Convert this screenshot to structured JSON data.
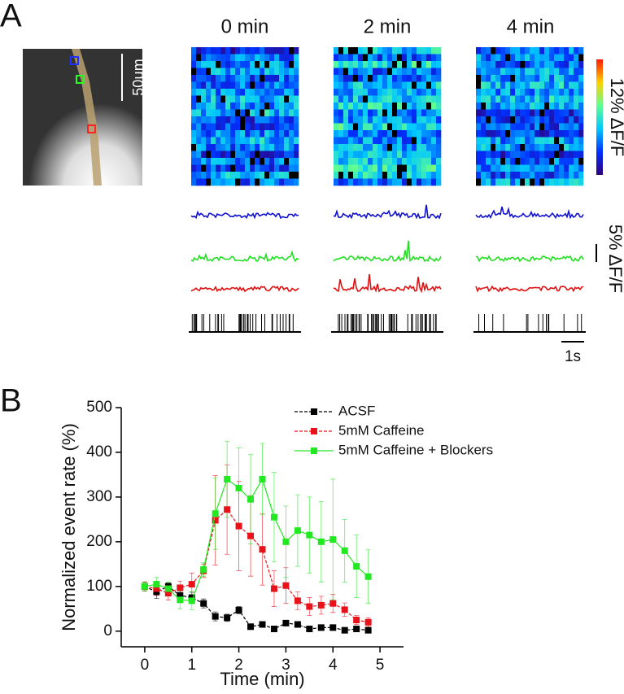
{
  "panel_a": {
    "label": "A",
    "time_labels": [
      "0 min",
      "2 min",
      "4 min"
    ],
    "scale_bar": "50μm",
    "colorbar_label": "12% ΔF/F",
    "trace_scale": "5% ΔF/F",
    "time_scale": "1s"
  },
  "panel_b": {
    "label": "B"
  },
  "chart_data": {
    "type": "line",
    "xlabel": "Time (min)",
    "ylabel": "Normalized event rate (%)",
    "x": [
      0,
      0.25,
      0.5,
      0.75,
      1,
      1.25,
      1.5,
      1.75,
      2,
      2.25,
      2.5,
      2.75,
      3,
      3.25,
      3.5,
      3.75,
      4,
      4.25,
      4.5,
      4.75
    ],
    "series": [
      {
        "name": "ACSF",
        "color": "#000000",
        "values": [
          100,
          88,
          100,
          80,
          75,
          62,
          33,
          30,
          47,
          10,
          15,
          5,
          18,
          15,
          5,
          8,
          8,
          2,
          5,
          2
        ],
        "errors": [
          10,
          15,
          8,
          15,
          12,
          10,
          10,
          8,
          8,
          5,
          5,
          5,
          5,
          5,
          5,
          5,
          5,
          5,
          5,
          5
        ]
      },
      {
        "name": "5mM Caffeine",
        "color": "#e8131a",
        "values": [
          100,
          95,
          85,
          97,
          105,
          135,
          248,
          272,
          235,
          213,
          183,
          95,
          102,
          68,
          55,
          58,
          62,
          48,
          25,
          20
        ],
        "errors": [
          10,
          15,
          15,
          15,
          25,
          15,
          100,
          100,
          100,
          90,
          80,
          40,
          40,
          20,
          20,
          20,
          20,
          15,
          10,
          10
        ]
      },
      {
        "name": "5mM Caffeine + Blockers",
        "color": "#22e822",
        "values": [
          100,
          105,
          95,
          70,
          68,
          138,
          263,
          340,
          320,
          295,
          340,
          255,
          200,
          225,
          215,
          200,
          205,
          180,
          145,
          122
        ],
        "errors": [
          10,
          15,
          15,
          20,
          20,
          15,
          80,
          85,
          90,
          100,
          80,
          100,
          80,
          80,
          85,
          90,
          135,
          70,
          70,
          60
        ]
      }
    ],
    "xlim": [
      -0.5,
      5.5
    ],
    "ylim": [
      -35,
      500
    ],
    "xticks": [
      0,
      1,
      2,
      3,
      4,
      5
    ],
    "yticks": [
      0,
      100,
      200,
      300,
      400,
      500
    ],
    "legend": "upper right"
  }
}
